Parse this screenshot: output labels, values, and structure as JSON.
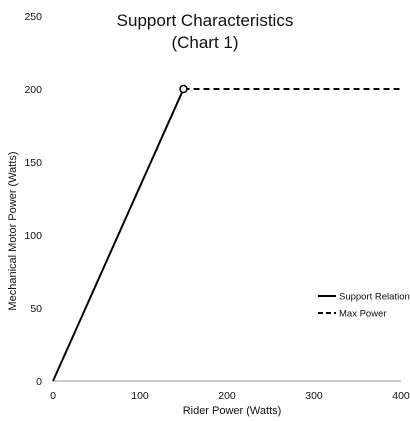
{
  "chart_data": {
    "type": "line",
    "title": [
      "Support Characteristics",
      "(Chart 1)"
    ],
    "xlabel": "Rider Power (Watts)",
    "ylabel": "Mechanical Motor Power (Watts)",
    "xlim": [
      0,
      400
    ],
    "ylim": [
      0,
      250
    ],
    "xticks": [
      0,
      100,
      200,
      300,
      400
    ],
    "yticks": [
      0,
      50,
      100,
      150,
      200,
      250
    ],
    "grid": false,
    "legend_position": "right",
    "series": [
      {
        "name": "Support Relation",
        "style": "solid",
        "color": "#000000",
        "points": [
          [
            0,
            0
          ],
          [
            150,
            200
          ]
        ]
      },
      {
        "name": "Max Power",
        "style": "dashed",
        "color": "#000000",
        "points": [
          [
            150,
            200
          ],
          [
            400,
            200
          ]
        ]
      }
    ],
    "markers": [
      {
        "x": 150,
        "y": 200,
        "shape": "open-circle"
      }
    ]
  }
}
